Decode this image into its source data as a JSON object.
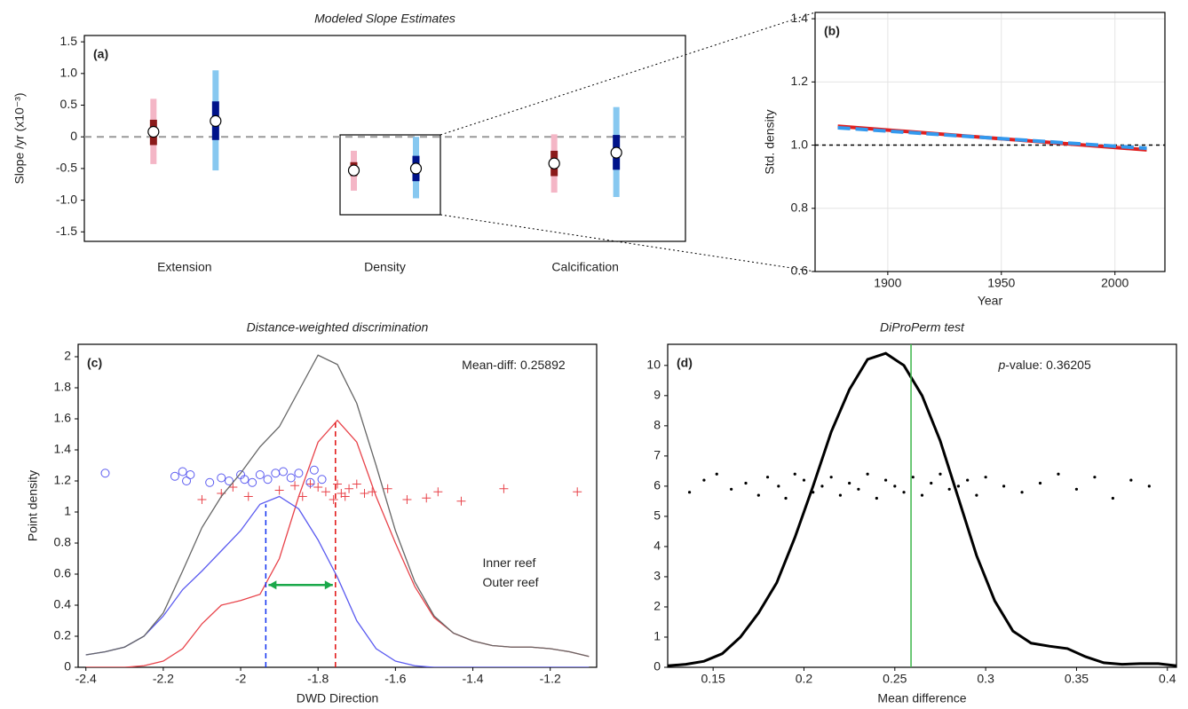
{
  "chart_data": [
    {
      "type": "interval",
      "title": "Modeled Slope Estimates",
      "panel_label": "(a)",
      "y_label": "Slope /yr (x10⁻³)",
      "categories": [
        "Extension",
        "Density",
        "Calcification"
      ],
      "ylim": [
        -1.65,
        1.6
      ],
      "yticks": [
        -1.5,
        {
          "value": -1,
          "label": "-1.0"
        },
        -0.5,
        0,
        0.5,
        {
          "value": 1,
          "label": "1.0"
        },
        1.5
      ],
      "reference_line": 0,
      "series": [
        {
          "color": "#f4b6c6",
          "dark_color": "#8b1a1a",
          "values": [
            0.08,
            -0.53,
            -0.42
          ],
          "inner_low": [
            -0.13,
            -0.62,
            -0.62
          ],
          "inner_high": [
            0.27,
            -0.4,
            -0.22
          ],
          "outer_low": [
            -0.43,
            -0.85,
            -0.88
          ],
          "outer_high": [
            0.6,
            -0.22,
            0.04
          ]
        },
        {
          "color": "#87c8f0",
          "dark_color": "#00138a",
          "values": [
            0.25,
            -0.5,
            -0.25
          ],
          "inner_low": [
            -0.05,
            -0.7,
            -0.52
          ],
          "inner_high": [
            0.56,
            -0.3,
            0.03
          ],
          "outer_low": [
            -0.53,
            -0.97,
            -0.95
          ],
          "outer_high": [
            1.05,
            0,
            0.47
          ]
        }
      ]
    },
    {
      "type": "line",
      "panel_label": "(b)",
      "x_label": "Year",
      "y_label": "Std. density",
      "xlim": [
        1868,
        2022
      ],
      "xticks": [
        1900,
        1950,
        2000
      ],
      "ylim": [
        0.6,
        1.42
      ],
      "yticks": [
        0.6,
        0.8,
        {
          "value": 1,
          "label": "1.0"
        },
        1.2,
        1.4
      ],
      "grid": true,
      "reference_line": 1,
      "series": [
        {
          "color": "#e02020",
          "x": [
            1878,
            2014
          ],
          "values": [
            1.06,
            0.985
          ]
        },
        {
          "color": "#3399ee",
          "dashed": true,
          "x": [
            1878,
            2014
          ],
          "values": [
            1.055,
            0.99
          ]
        }
      ]
    },
    {
      "type": "density",
      "title": "Distance-weighted discrimination",
      "panel_label": "(c)",
      "x_label": "DWD Direction",
      "y_label": "Point density",
      "xlim": [
        -2.42,
        -1.08
      ],
      "xticks": [
        -2.4,
        -2.2,
        -2,
        -1.8,
        -1.6,
        -1.4,
        -1.2
      ],
      "ylim": [
        0,
        2.08
      ],
      "yticks": [
        0,
        0.2,
        0.4,
        0.6,
        0.8,
        1,
        1.2,
        1.4,
        1.6,
        1.8,
        2
      ],
      "annotation": "Mean-diff: 0.25892",
      "annotation_color": "#1aa84a",
      "x": [
        -2.4,
        -2.35,
        -2.3,
        -2.25,
        -2.2,
        -2.15,
        -2.1,
        -2.05,
        -2.0,
        -1.95,
        -1.9,
        -1.85,
        -1.8,
        -1.75,
        -1.7,
        -1.65,
        -1.6,
        -1.55,
        -1.5,
        -1.45,
        -1.4,
        -1.35,
        -1.3,
        -1.25,
        -1.2,
        -1.15,
        -1.1
      ],
      "total": {
        "color": "#666666",
        "values": [
          0.08,
          0.1,
          0.13,
          0.2,
          0.35,
          0.62,
          0.9,
          1.1,
          1.25,
          1.42,
          1.55,
          1.78,
          2.01,
          1.95,
          1.7,
          1.3,
          0.88,
          0.55,
          0.33,
          0.22,
          0.17,
          0.14,
          0.13,
          0.13,
          0.12,
          0.1,
          0.07
        ]
      },
      "series": [
        {
          "name": "Inner reef",
          "color": "#e8434a",
          "marker": "plus",
          "mean": -1.755,
          "values": [
            0,
            0,
            0,
            0.01,
            0.04,
            0.12,
            0.28,
            0.4,
            0.43,
            0.47,
            0.7,
            1.1,
            1.45,
            1.59,
            1.45,
            1.1,
            0.8,
            0.52,
            0.32,
            0.22,
            0.17,
            0.14,
            0.13,
            0.13,
            0.12,
            0.1,
            0.07
          ],
          "points_x": [
            -2.1,
            -2.05,
            -2.02,
            -1.98,
            -1.9,
            -1.86,
            -1.84,
            -1.82,
            -1.8,
            -1.78,
            -1.76,
            -1.75,
            -1.74,
            -1.73,
            -1.72,
            -1.7,
            -1.68,
            -1.66,
            -1.62,
            -1.57,
            -1.52,
            -1.49,
            -1.43,
            -1.32,
            -1.13
          ],
          "points_y": [
            1.08,
            1.12,
            1.16,
            1.1,
            1.14,
            1.17,
            1.1,
            1.18,
            1.16,
            1.13,
            1.08,
            1.18,
            1.12,
            1.1,
            1.15,
            1.18,
            1.12,
            1.13,
            1.15,
            1.08,
            1.09,
            1.13,
            1.07,
            1.15,
            1.13
          ]
        },
        {
          "name": "Outer reef",
          "color": "#5b5bf0",
          "marker": "circle",
          "mean": -1.935,
          "values": [
            0.08,
            0.1,
            0.13,
            0.2,
            0.33,
            0.5,
            0.62,
            0.75,
            0.88,
            1.05,
            1.1,
            1.02,
            0.82,
            0.58,
            0.3,
            0.12,
            0.04,
            0.01,
            0,
            0,
            0,
            0,
            0,
            0,
            0,
            0,
            0
          ],
          "points_x": [
            -2.35,
            -2.17,
            -2.15,
            -2.14,
            -2.13,
            -2.08,
            -2.05,
            -2.03,
            -2.0,
            -1.99,
            -1.97,
            -1.95,
            -1.93,
            -1.91,
            -1.89,
            -1.87,
            -1.85,
            -1.82,
            -1.81,
            -1.79
          ],
          "points_y": [
            1.25,
            1.23,
            1.26,
            1.2,
            1.24,
            1.19,
            1.22,
            1.2,
            1.24,
            1.21,
            1.19,
            1.24,
            1.21,
            1.25,
            1.26,
            1.22,
            1.25,
            1.19,
            1.27,
            1.21
          ]
        }
      ]
    },
    {
      "type": "density",
      "title": "DiProPerm test",
      "panel_label": "(d)",
      "x_label": "Mean difference",
      "xlim": [
        0.125,
        0.405
      ],
      "xticks": [
        0.15,
        0.2,
        0.25,
        0.3,
        0.35,
        0.4
      ],
      "ylim": [
        0,
        10.7
      ],
      "yticks": [
        0,
        1,
        2,
        3,
        4,
        5,
        6,
        7,
        8,
        9,
        10
      ],
      "annotation_italic": "p",
      "annotation": "-value: 0.36205",
      "annotation_color": "#000000",
      "observed": 0.25892,
      "observed_color": "#3cb54a",
      "x": [
        0.125,
        0.135,
        0.145,
        0.155,
        0.165,
        0.175,
        0.185,
        0.195,
        0.205,
        0.215,
        0.225,
        0.235,
        0.245,
        0.255,
        0.265,
        0.275,
        0.285,
        0.295,
        0.305,
        0.315,
        0.325,
        0.335,
        0.345,
        0.355,
        0.365,
        0.375,
        0.385,
        0.395,
        0.405
      ],
      "total": {
        "color": "#000000",
        "values": [
          0.05,
          0.1,
          0.2,
          0.45,
          1.0,
          1.8,
          2.8,
          4.3,
          6.0,
          7.8,
          9.2,
          10.2,
          10.4,
          10.0,
          9.0,
          7.5,
          5.6,
          3.7,
          2.2,
          1.2,
          0.8,
          0.7,
          0.62,
          0.35,
          0.15,
          0.1,
          0.12,
          0.12,
          0.05
        ]
      },
      "points_color": "#000000",
      "points_x": [
        0.137,
        0.145,
        0.152,
        0.16,
        0.168,
        0.175,
        0.18,
        0.186,
        0.19,
        0.195,
        0.2,
        0.205,
        0.21,
        0.215,
        0.22,
        0.225,
        0.23,
        0.235,
        0.24,
        0.245,
        0.25,
        0.255,
        0.26,
        0.265,
        0.27,
        0.275,
        0.28,
        0.285,
        0.29,
        0.295,
        0.3,
        0.31,
        0.32,
        0.33,
        0.34,
        0.35,
        0.36,
        0.37,
        0.38,
        0.39
      ],
      "points_y": [
        5.8,
        6.2,
        6.4,
        5.9,
        6.1,
        5.7,
        6.3,
        6.0,
        5.6,
        6.4,
        6.2,
        5.8,
        6.0,
        6.3,
        5.7,
        6.1,
        5.9,
        6.4,
        5.6,
        6.2,
        6.0,
        5.8,
        6.3,
        5.7,
        6.1,
        6.4,
        5.9,
        6.0,
        6.2,
        5.7,
        6.3,
        6.0,
        5.8,
        6.1,
        6.4,
        5.9,
        6.3,
        5.6,
        6.2,
        6.0
      ]
    }
  ]
}
